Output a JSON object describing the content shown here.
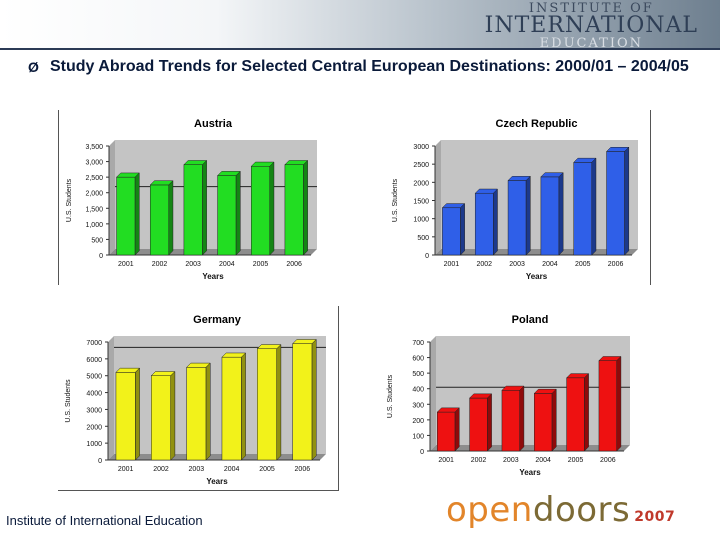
{
  "header": {
    "logo_line1": "INSTITUTE OF",
    "logo_line2": "INTERNATIONAL",
    "logo_line3": "EDUCATION",
    "arrow": "Ø",
    "title": "Study Abroad Trends for Selected Central European Destinations: 2000/01 – 2004/05"
  },
  "footer": {
    "institute": "Institute of International Education",
    "brand_open": "open",
    "brand_doors": "doors",
    "brand_year": "2007"
  },
  "chart_data": [
    {
      "id": "austria",
      "type": "bar",
      "title": "Austria",
      "xlabel": "Years",
      "ylabel": "U.S. Students",
      "categories": [
        "2001",
        "2002",
        "2003",
        "2004",
        "2005",
        "2006"
      ],
      "values": [
        2500,
        2250,
        2900,
        2550,
        2850,
        2900
      ],
      "ylim": [
        0,
        3500
      ],
      "yticks": [
        "0",
        "500",
        "1,000",
        "1,500",
        "2,000",
        "2,500",
        "3,000",
        "3,500"
      ],
      "reference_line": 2100,
      "color": "#22dd22"
    },
    {
      "id": "czech",
      "type": "bar",
      "title": "Czech Republic",
      "xlabel": "Years",
      "ylabel": "U.S. Students",
      "categories": [
        "2001",
        "2002",
        "2003",
        "2004",
        "2005",
        "2006"
      ],
      "values": [
        1300,
        1700,
        2050,
        2150,
        2550,
        2850
      ],
      "ylim": [
        0,
        3000
      ],
      "yticks": [
        "0",
        "500",
        "1000",
        "1500",
        "2000",
        "2500",
        "3000"
      ],
      "color": "#2f5fe8"
    },
    {
      "id": "germany",
      "type": "bar",
      "title": "Germany",
      "xlabel": "Years",
      "ylabel": "U.S. Students",
      "categories": [
        "2001",
        "2002",
        "2003",
        "2004",
        "2005",
        "2006"
      ],
      "values": [
        5200,
        5000,
        5500,
        6100,
        6600,
        6900
      ],
      "ylim": [
        0,
        7000
      ],
      "yticks": [
        "0",
        "1000",
        "2000",
        "3000",
        "4000",
        "5000",
        "6000",
        "7000"
      ],
      "reference_line": 6500,
      "color": "#f2f21a"
    },
    {
      "id": "poland",
      "type": "bar",
      "title": "Poland",
      "xlabel": "Years",
      "ylabel": "U.S. Students",
      "categories": [
        "2001",
        "2002",
        "2003",
        "2004",
        "2005",
        "2006"
      ],
      "values": [
        250,
        340,
        390,
        370,
        470,
        580
      ],
      "ylim": [
        0,
        700
      ],
      "yticks": [
        "0",
        "100",
        "200",
        "300",
        "400",
        "500",
        "600",
        "700"
      ],
      "reference_line": 390,
      "color": "#ee1111"
    }
  ]
}
